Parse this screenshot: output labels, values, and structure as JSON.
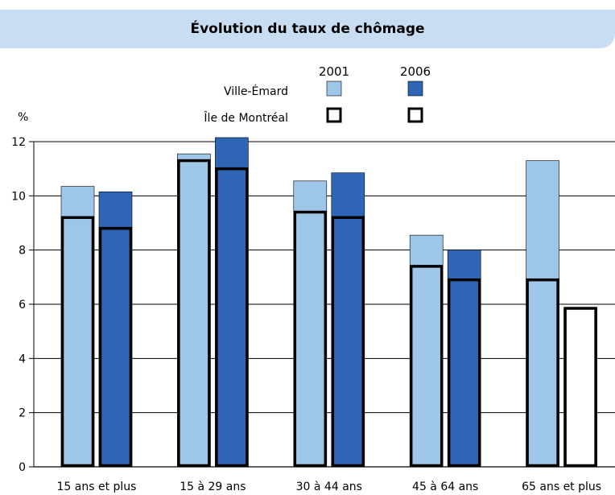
{
  "chart_data": {
    "type": "bar",
    "title": "Évolution du taux de chômage",
    "ylabel": "%",
    "xlabel": "",
    "ylim": [
      0,
      12
    ],
    "yticks": [
      "0",
      "2",
      "4",
      "6",
      "8",
      "10",
      "12"
    ],
    "grid": true,
    "legend_position": "top",
    "legend_years": [
      "2001",
      "2006"
    ],
    "legend_rows": [
      "Ville-Émard",
      "Île de Montréal"
    ],
    "categories": [
      "15 ans et plus",
      "15 à 29 ans",
      "30 à 44 ans",
      "45 à 64 ans",
      "65 ans et plus"
    ],
    "series": [
      {
        "name": "Ville-Émard 2001",
        "values": [
          10.35,
          11.55,
          10.55,
          8.55,
          11.3
        ]
      },
      {
        "name": "Ville-Émard 2006",
        "values": [
          10.15,
          12.15,
          10.85,
          8.0,
          5.85
        ]
      },
      {
        "name": "Île de Montréal 2001",
        "values": [
          9.2,
          11.3,
          9.4,
          7.4,
          6.9
        ]
      },
      {
        "name": "Île de Montréal 2006",
        "values": [
          8.8,
          11.0,
          9.2,
          6.9,
          5.85
        ]
      }
    ]
  },
  "colors": {
    "ville_emard_2001": "#9ec6e9",
    "ville_emard_2006": "#2e66b5",
    "title_band": "#c9ddf2",
    "outline": "#000000",
    "empty_fill": "#ffffff"
  }
}
